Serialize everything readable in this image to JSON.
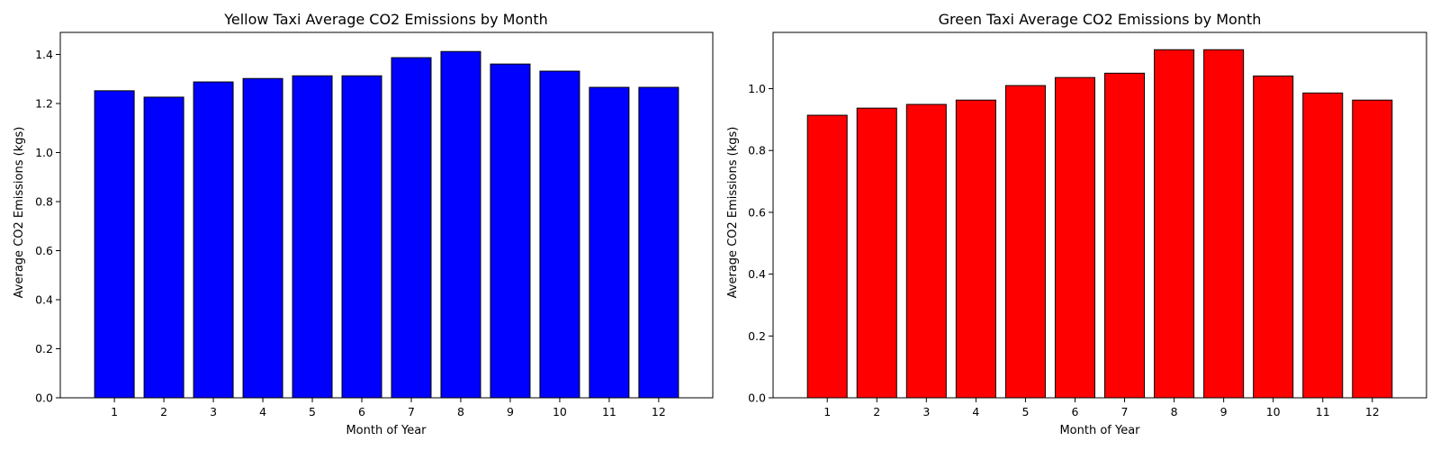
{
  "chart_data": [
    {
      "type": "bar",
      "title": "Yellow Taxi Average CO2 Emissions by Month",
      "xlabel": "Month of Year",
      "ylabel": "Average CO2 Emissions (kgs)",
      "categories": [
        "1",
        "2",
        "3",
        "4",
        "5",
        "6",
        "7",
        "8",
        "9",
        "10",
        "11",
        "12"
      ],
      "values": [
        1.252,
        1.226,
        1.288,
        1.302,
        1.313,
        1.313,
        1.387,
        1.412,
        1.361,
        1.332,
        1.266,
        1.266
      ],
      "ylim": [
        0,
        1.49
      ],
      "yticks": [
        0.0,
        0.2,
        0.4,
        0.6,
        0.8,
        1.0,
        1.2,
        1.4
      ],
      "ytick_labels": [
        "0.0",
        "0.2",
        "0.4",
        "0.6",
        "0.8",
        "1.0",
        "1.2",
        "1.4"
      ],
      "bar_color": "#0000ff",
      "grid": false
    },
    {
      "type": "bar",
      "title": "Green Taxi Average CO2 Emissions by Month",
      "xlabel": "Month of Year",
      "ylabel": "Average CO2 Emissions (kgs)",
      "categories": [
        "1",
        "2",
        "3",
        "4",
        "5",
        "6",
        "7",
        "8",
        "9",
        "10",
        "11",
        "12"
      ],
      "values": [
        0.914,
        0.937,
        0.949,
        0.963,
        1.01,
        1.036,
        1.05,
        1.126,
        1.126,
        1.041,
        0.986,
        0.963
      ],
      "ylim": [
        0,
        1.182
      ],
      "yticks": [
        0.0,
        0.2,
        0.4,
        0.6,
        0.8,
        1.0
      ],
      "ytick_labels": [
        "0.0",
        "0.2",
        "0.4",
        "0.6",
        "0.8",
        "1.0"
      ],
      "bar_color": "#ff0000",
      "grid": false
    }
  ]
}
